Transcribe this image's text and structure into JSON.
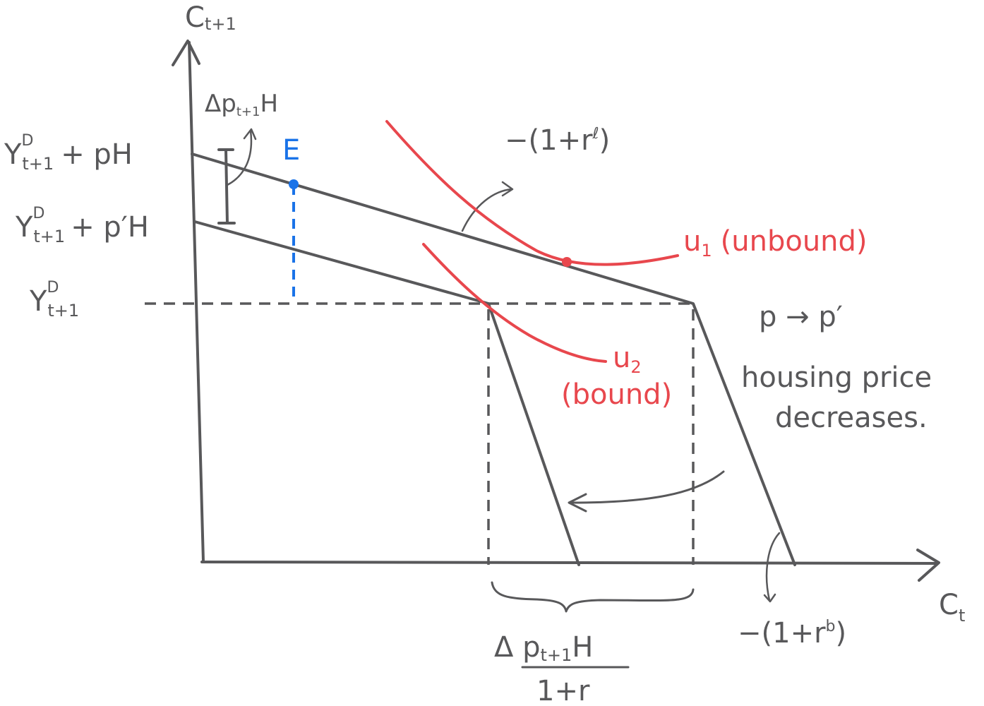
{
  "axes": {
    "y_label": "C",
    "y_label_sub": "t+1",
    "x_label": "C",
    "x_label_sub": "t"
  },
  "y_ticks": {
    "top": {
      "base": "Y",
      "sup": "D",
      "sub": "t+1",
      "rest": "+ pH"
    },
    "mid": {
      "base": "Y",
      "sup": "D",
      "sub": "t+1",
      "rest": "+ p′H"
    },
    "low": {
      "base": "Y",
      "sup": "D",
      "sub": "t+1"
    }
  },
  "annotations": {
    "delta_top": "Δp",
    "delta_top_sub": "t+1",
    "delta_top_rest": "H",
    "point_e": "E",
    "slope_lend": "−(1+r",
    "slope_lend_sup": "ℓ",
    "slope_lend_close": ")",
    "slope_borrow": "−(1+r",
    "slope_borrow_sup": "b",
    "slope_borrow_close": ")",
    "price_change": "p → p′",
    "price_note_1": "housing price",
    "price_note_2": "decreases.",
    "bottom_num": "Δ p",
    "bottom_num_sub": "t+1",
    "bottom_num_rest": "H",
    "bottom_den": "1+r"
  },
  "curves": {
    "u1": "u",
    "u1_sub": "1",
    "u1_note": "(unbound)",
    "u2": "u",
    "u2_sub": "2",
    "u2_note": "(bound)"
  },
  "colors": {
    "ink": "#58585a",
    "red": "#e8474d",
    "blue": "#1a73e8"
  }
}
